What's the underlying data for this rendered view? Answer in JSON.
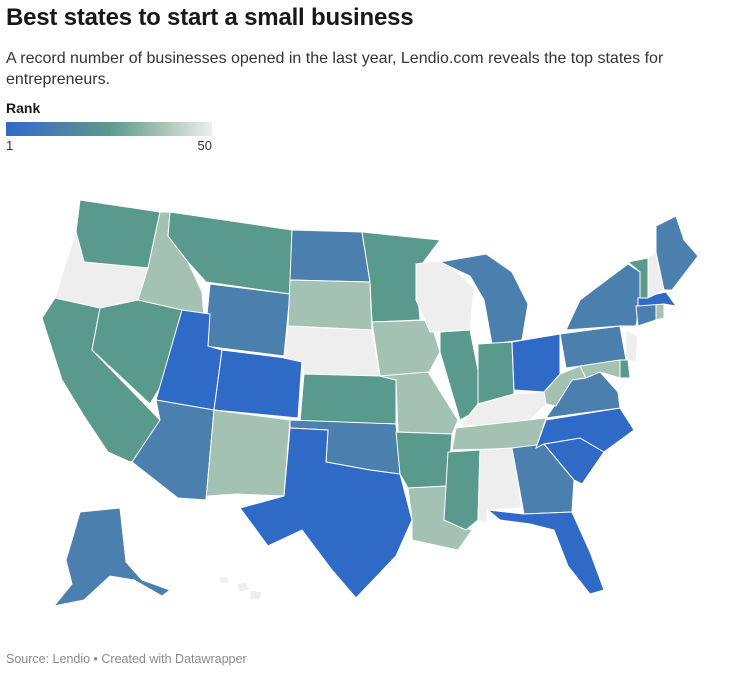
{
  "header": {
    "title": "Best states to start a small business",
    "subtitle": "A record number of businesses opened in the last year, Lendio.com reveals the top states for entrepreneurs."
  },
  "legend": {
    "title": "Rank",
    "min_label": "1",
    "max_label": "50",
    "colors": [
      "#2f6ac6",
      "#4a7fae",
      "#5a9a8c",
      "#a3c2b3",
      "#eeeeee"
    ]
  },
  "footer": {
    "source": "Source: Lendio • Created with Datawrapper"
  },
  "map_data": {
    "color_scale": {
      "top": "#2f6ac6",
      "upper_middle": "#4a7fae",
      "middle": "#5a9a8c",
      "lower_middle": "#a3c2b3",
      "bottom": "#eeeeee",
      "no_data": "#eeeeee"
    },
    "states": [
      {
        "id": "WA",
        "shade": "middle"
      },
      {
        "id": "OR",
        "shade": "bottom"
      },
      {
        "id": "CA",
        "shade": "middle"
      },
      {
        "id": "ID",
        "shade": "lower_middle"
      },
      {
        "id": "NV",
        "shade": "middle"
      },
      {
        "id": "MT",
        "shade": "middle"
      },
      {
        "id": "WY",
        "shade": "upper_middle"
      },
      {
        "id": "UT",
        "shade": "top"
      },
      {
        "id": "CO",
        "shade": "top"
      },
      {
        "id": "AZ",
        "shade": "upper_middle"
      },
      {
        "id": "NM",
        "shade": "lower_middle"
      },
      {
        "id": "ND",
        "shade": "upper_middle"
      },
      {
        "id": "SD",
        "shade": "lower_middle"
      },
      {
        "id": "NE",
        "shade": "bottom"
      },
      {
        "id": "KS",
        "shade": "middle"
      },
      {
        "id": "OK",
        "shade": "upper_middle"
      },
      {
        "id": "TX",
        "shade": "top"
      },
      {
        "id": "MN",
        "shade": "middle"
      },
      {
        "id": "IA",
        "shade": "lower_middle"
      },
      {
        "id": "MO",
        "shade": "lower_middle"
      },
      {
        "id": "AR",
        "shade": "middle"
      },
      {
        "id": "LA",
        "shade": "lower_middle"
      },
      {
        "id": "WI",
        "shade": "bottom"
      },
      {
        "id": "IL",
        "shade": "middle"
      },
      {
        "id": "MI",
        "shade": "upper_middle"
      },
      {
        "id": "IN",
        "shade": "middle"
      },
      {
        "id": "OH",
        "shade": "top"
      },
      {
        "id": "KY",
        "shade": "bottom"
      },
      {
        "id": "TN",
        "shade": "lower_middle"
      },
      {
        "id": "MS",
        "shade": "middle"
      },
      {
        "id": "AL",
        "shade": "bottom"
      },
      {
        "id": "GA",
        "shade": "upper_middle"
      },
      {
        "id": "FL",
        "shade": "top"
      },
      {
        "id": "SC",
        "shade": "top"
      },
      {
        "id": "NC",
        "shade": "top"
      },
      {
        "id": "VA",
        "shade": "upper_middle"
      },
      {
        "id": "WV",
        "shade": "lower_middle"
      },
      {
        "id": "PA",
        "shade": "upper_middle"
      },
      {
        "id": "NY",
        "shade": "upper_middle"
      },
      {
        "id": "NJ",
        "shade": "bottom"
      },
      {
        "id": "DE",
        "shade": "middle"
      },
      {
        "id": "MD",
        "shade": "lower_middle"
      },
      {
        "id": "CT",
        "shade": "upper_middle"
      },
      {
        "id": "RI",
        "shade": "lower_middle"
      },
      {
        "id": "MA",
        "shade": "top"
      },
      {
        "id": "VT",
        "shade": "middle"
      },
      {
        "id": "NH",
        "shade": "bottom"
      },
      {
        "id": "ME",
        "shade": "upper_middle"
      },
      {
        "id": "AK",
        "shade": "upper_middle"
      },
      {
        "id": "HI",
        "shade": "no_data"
      }
    ]
  }
}
